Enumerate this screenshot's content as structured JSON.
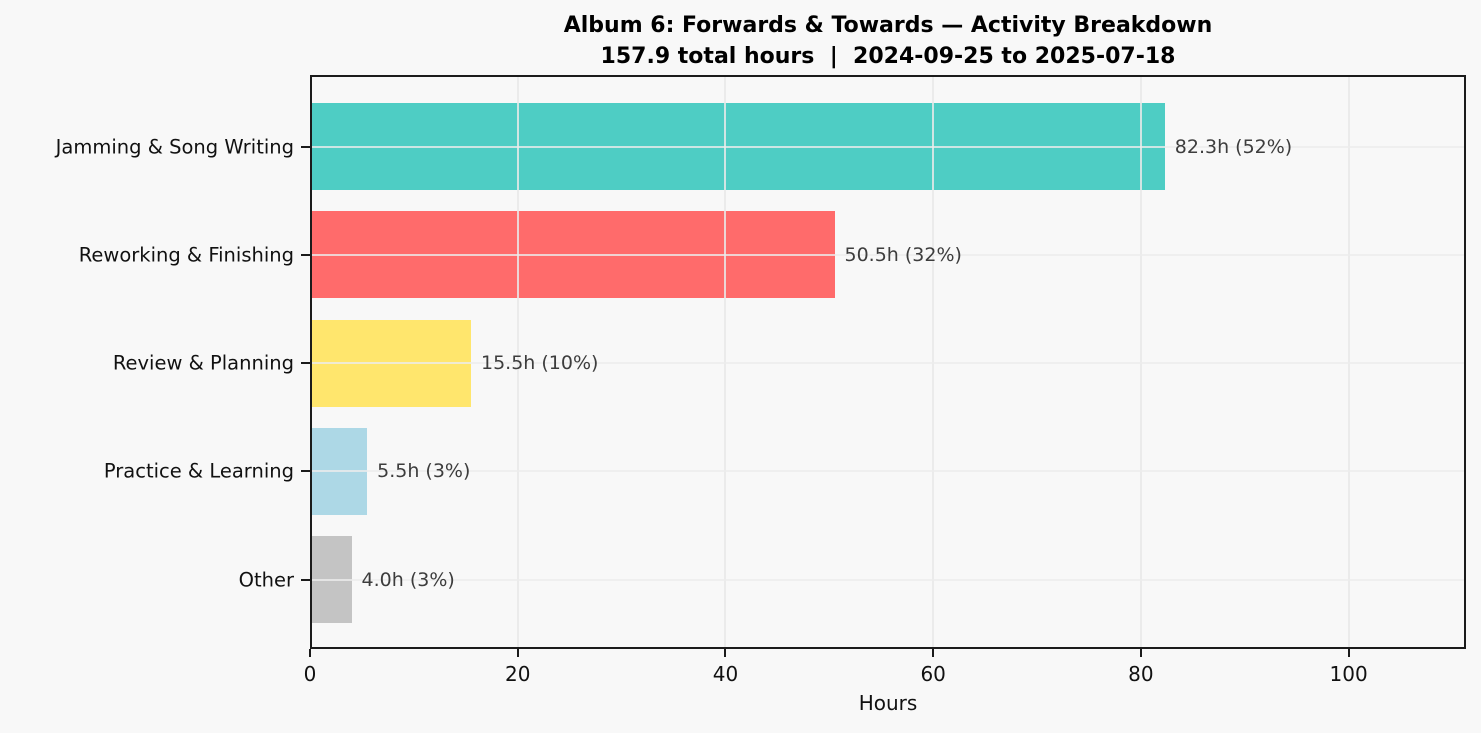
{
  "chart_data": {
    "type": "bar",
    "orientation": "horizontal",
    "title": "Album 6: Forwards & Towards — Activity Breakdown",
    "subtitle": "157.9 total hours  |  2024-09-25 to 2025-07-18",
    "xlabel": "Hours",
    "xlim": [
      0,
      111.3
    ],
    "xticks": [
      0,
      20,
      40,
      60,
      80,
      100
    ],
    "grid": true,
    "legend_position": "none",
    "categories": [
      "Jamming & Song Writing",
      "Reworking & Finishing",
      "Review & Planning",
      "Practice & Learning",
      "Other"
    ],
    "values": [
      82.3,
      50.5,
      15.5,
      5.5,
      4.0
    ],
    "bar_labels": [
      "82.3h (52%)",
      "50.5h (32%)",
      "15.5h (10%)",
      "5.5h (3%)",
      "4.0h (3%)"
    ],
    "bar_colors": [
      "#4ECDC4",
      "#FF6B6B",
      "#FFE66D",
      "#ADD8E6",
      "#C4C4C4"
    ],
    "total_hours": 157.9,
    "date_range": {
      "start": "2024-09-25",
      "end": "2025-07-18"
    },
    "style": {
      "background_color": "#f8f8f8",
      "spine_color": "#1b1b1b",
      "gridline_color": "#ececec",
      "value_label_color": "#3d3d3d",
      "tick_label_color": "#111111"
    }
  }
}
